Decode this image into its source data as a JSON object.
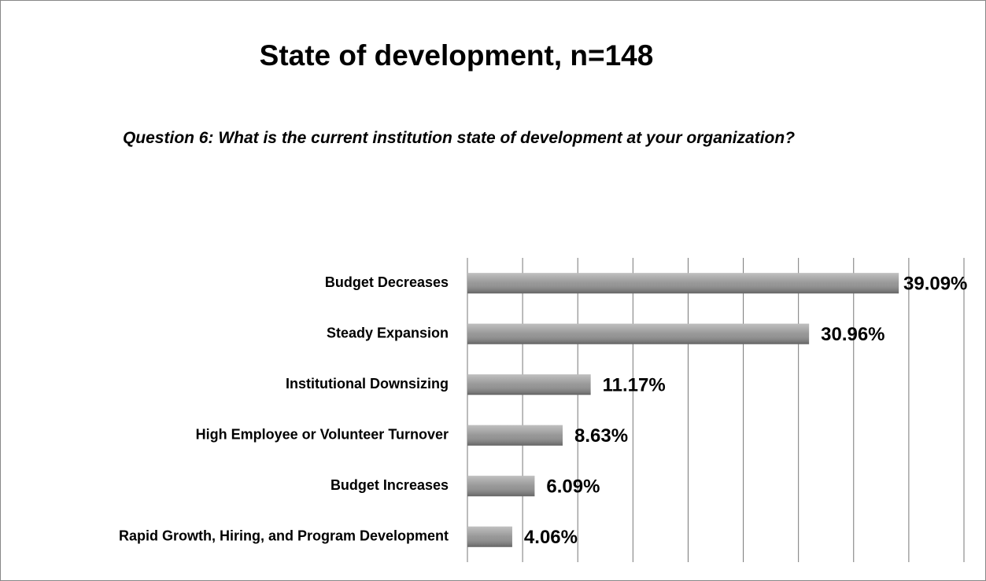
{
  "chart_data": {
    "type": "bar",
    "orientation": "horizontal",
    "title": "State of development, n=148",
    "subtitle": "Question 6: What is the current institution state of development at your organization?",
    "categories": [
      "Budget Decreases",
      "Steady Expansion",
      "Institutional Downsizing",
      "High Employee or Volunteer Turnover",
      "Budget Increases",
      "Rapid Growth, Hiring, and Program Development"
    ],
    "values": [
      39.09,
      30.96,
      11.17,
      8.63,
      6.09,
      4.06
    ],
    "value_labels": [
      "39.09%",
      "30.96%",
      "11.17%",
      "8.63%",
      "6.09%",
      "4.06%"
    ],
    "color": "#8c8c8c",
    "xlim": [
      0,
      45
    ],
    "xticks": [
      0,
      5,
      10,
      15,
      20,
      25,
      30,
      35,
      40,
      45
    ],
    "grid": true
  }
}
